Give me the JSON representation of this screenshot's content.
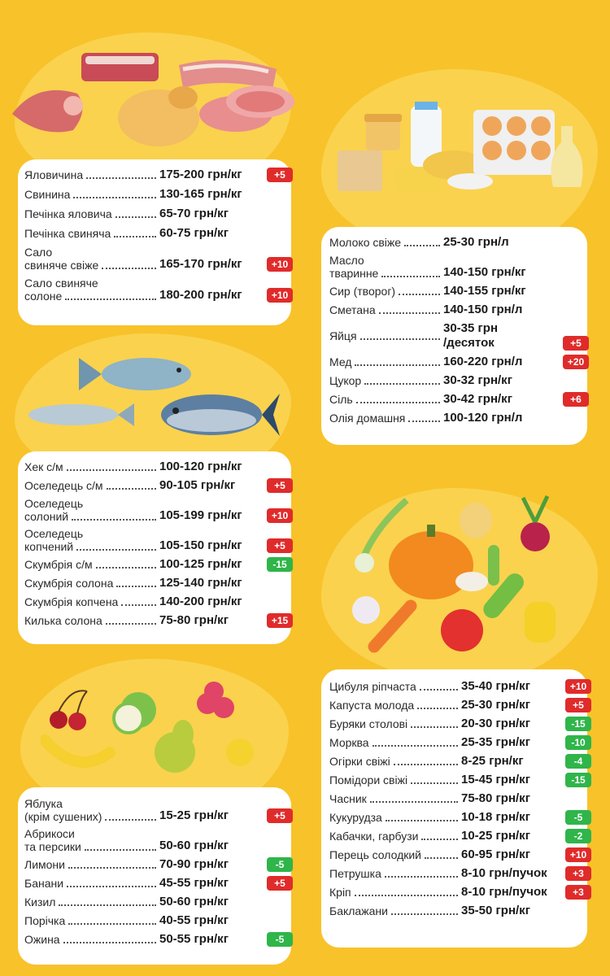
{
  "meat": [
    {
      "name": "Яловичина",
      "price": "175-200",
      "unit": "грн/кг",
      "badge": "+5",
      "color": "red"
    },
    {
      "name": "Свинина",
      "price": "130-165",
      "unit": "грн/кг"
    },
    {
      "name": "Печінка яловича",
      "price": "65-70",
      "unit": "грн/кг"
    },
    {
      "name": "Печінка свиняча",
      "price": "60-75",
      "unit": "грн/кг"
    },
    {
      "name": "Сало",
      "name2": "свиняче свіже",
      "price": "165-170",
      "unit": "грн/кг",
      "badge": "+10",
      "color": "red"
    },
    {
      "name": "Сало свиняче",
      "name2": "солоне",
      "price": "180-200",
      "unit": "грн/кг",
      "badge": "+10",
      "color": "red"
    }
  ],
  "fish": [
    {
      "name": "Хек с/м",
      "price": "100-120",
      "unit": "грн/кг"
    },
    {
      "name": "Оселедець с/м",
      "price": "90-105",
      "unit": "грн/кг",
      "badge": "+5",
      "color": "red"
    },
    {
      "name": "Оселедець",
      "name2": "солоний",
      "price": "105-199",
      "unit": "грн/кг",
      "badge": "+10",
      "color": "red"
    },
    {
      "name": "Оселедець",
      "name2": "копчений",
      "price": "105-150",
      "unit": "грн/кг",
      "badge": "+5",
      "color": "red"
    },
    {
      "name": "Скумбрія с/м",
      "price": "100-125",
      "unit": "грн/кг",
      "badge": "-15",
      "color": "green"
    },
    {
      "name": "Скумбрія солона",
      "price": "125-140",
      "unit": "грн/кг"
    },
    {
      "name": "Скумбрія копчена",
      "price": "140-200",
      "unit": "грн/кг"
    },
    {
      "name": "Килька солона",
      "price": "75-80",
      "unit": "грн/кг",
      "badge": "+15",
      "color": "red"
    }
  ],
  "fruits": [
    {
      "name": "Яблука",
      "name2": "(крім сушених)",
      "price": "15-25",
      "unit": "грн/кг",
      "badge": "+5",
      "color": "red"
    },
    {
      "name": "Абрикоси",
      "name2": "та  персики",
      "price": "50-60",
      "unit": "грн/кг"
    },
    {
      "name": "Лимони",
      "price": "70-90",
      "unit": "грн/кг",
      "badge": "-5",
      "color": "green"
    },
    {
      "name": "Банани",
      "price": "45-55",
      "unit": "грн/кг",
      "badge": "+5",
      "color": "red"
    },
    {
      "name": "Кизил",
      "price": "50-60",
      "unit": "грн/кг"
    },
    {
      "name": "Порічка",
      "price": "40-55",
      "unit": "грн/кг"
    },
    {
      "name": "Ожина",
      "price": "50-55",
      "unit": "грн/кг",
      "badge": "-5",
      "color": "green"
    }
  ],
  "dairy": [
    {
      "name": "Молоко свіже",
      "price": "25-30",
      "unit": "грн/л"
    },
    {
      "name": "Масло",
      "name2": "тваринне",
      "price": "140-150",
      "unit": "грн/кг"
    },
    {
      "name": "Сир (творог)",
      "price": "140-155",
      "unit": "грн/кг"
    },
    {
      "name": "Сметана",
      "price": "140-150",
      "unit": "грн/л"
    },
    {
      "name": "Яйця",
      "price": "30-35",
      "unit": "грн",
      "unit2": "/десяток",
      "badge": "+5",
      "color": "red"
    },
    {
      "name": "Мед",
      "price": "160-220",
      "unit": "грн/л",
      "badge": "+20",
      "color": "red"
    },
    {
      "name": "Цукор",
      "price": "30-32",
      "unit": "грн/кг"
    },
    {
      "name": "Сіль",
      "price": "30-42",
      "unit": "грн/кг",
      "badge": "+6",
      "color": "red"
    },
    {
      "name": "Олія домашня",
      "price": "100-120",
      "unit": "грн/л"
    }
  ],
  "vegetables": [
    {
      "name": "Цибуля ріпчаста",
      "price": "35-40",
      "unit": "грн/кг",
      "badge": "+10",
      "color": "red"
    },
    {
      "name": "Капуста молода",
      "price": "25-30",
      "unit": "грн/кг",
      "badge": "+5",
      "color": "red"
    },
    {
      "name": "Буряки столові",
      "price": "20-30",
      "unit": "грн/кг",
      "badge": "-15",
      "color": "green"
    },
    {
      "name": "Морква",
      "price": "25-35",
      "unit": "грн/кг",
      "badge": "-10",
      "color": "green"
    },
    {
      "name": "Огірки свіжі",
      "price": "8-25",
      "unit": "грн/кг",
      "badge": "-4",
      "color": "green"
    },
    {
      "name": "Помідори свіжі",
      "price": "15-45",
      "unit": "грн/кг",
      "badge": "-15",
      "color": "green"
    },
    {
      "name": "Часник",
      "price": "75-80",
      "unit": "грн/кг"
    },
    {
      "name": "Кукурудза",
      "price": "10-18",
      "unit": "грн/кг",
      "badge": "-5",
      "color": "green"
    },
    {
      "name": "Кабачки, гарбузи",
      "price": "10-25",
      "unit": "грн/кг",
      "badge": "-2",
      "color": "green"
    },
    {
      "name": "Перець солодкий",
      "price": "60-95",
      "unit": "грн/кг",
      "badge": "+10",
      "color": "red"
    },
    {
      "name": "Петрушка",
      "price": "8-10",
      "unit": "грн/пучок",
      "badge": "+3",
      "color": "red"
    },
    {
      "name": "Кріп",
      "price": "8-10",
      "unit": "грн/пучок",
      "badge": "+3",
      "color": "red"
    },
    {
      "name": "Баклажани",
      "price": "35-50",
      "unit": "грн/кг"
    }
  ],
  "colors": {
    "background": "#F8C22A",
    "increase": "#E02B2B",
    "decrease": "#2FB54A"
  }
}
